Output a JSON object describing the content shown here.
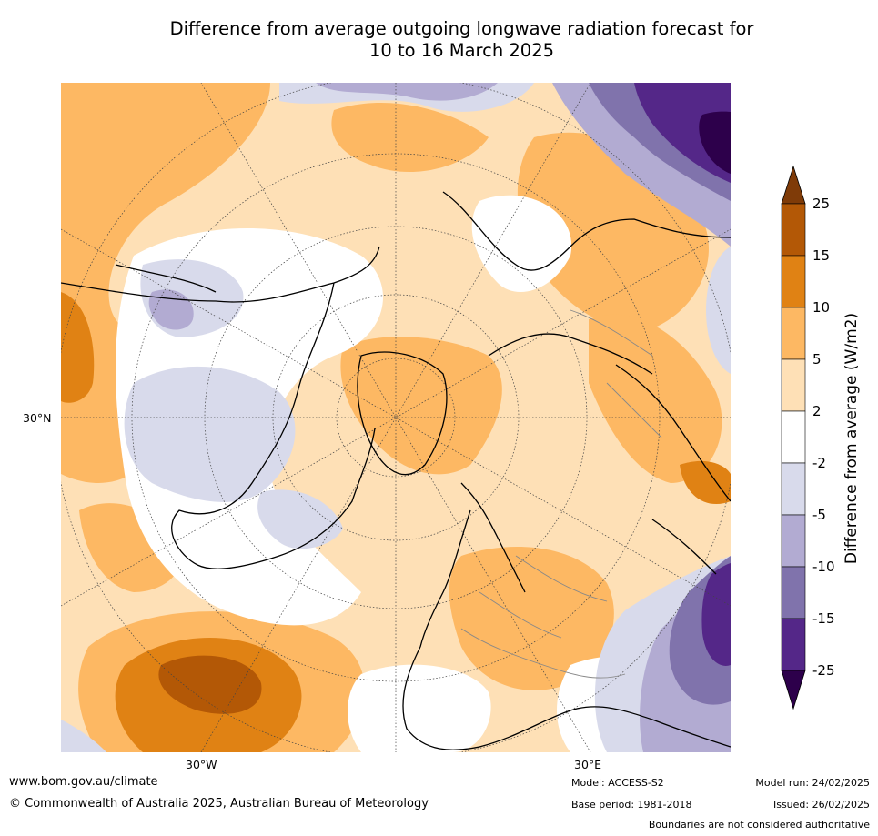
{
  "title_line1": "Difference from average outgoing longwave radiation forecast for",
  "title_line2": "10 to 16 March 2025",
  "map": {
    "projection": "north-polar-stereographic",
    "lat_label_left": "30°N",
    "lon_label_left": "30°W",
    "lon_label_right": "30°E"
  },
  "colorbar": {
    "title": "Difference from average (W/m2)",
    "levels": [
      "25",
      "15",
      "10",
      "5",
      "2",
      "-2",
      "-5",
      "-10",
      "-15",
      "-25"
    ],
    "colors": [
      "#7f3b08",
      "#b35806",
      "#e08214",
      "#fdb863",
      "#fee0b6",
      "#ffffff",
      "#d8daeb",
      "#b2abd2",
      "#8073ac",
      "#542788",
      "#2d004b"
    ]
  },
  "footer": {
    "url": "www.bom.gov.au/climate",
    "copyright": "© Commonwealth of Australia 2025, Australian Bureau of Meteorology",
    "model": "Model: ACCESS-S2",
    "base_period": "Base period: 1981-2018",
    "model_run": "Model run: 24/02/2025",
    "issued": "Issued: 26/02/2025",
    "disclaimer": "Boundaries are not considered authoritative"
  }
}
